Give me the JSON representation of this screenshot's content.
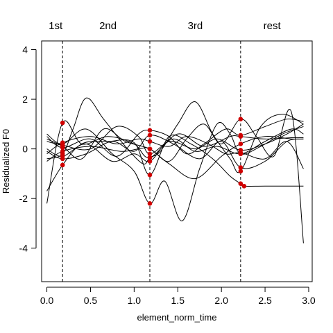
{
  "chart_data": {
    "type": "line",
    "xlabel": "element_norm_time",
    "ylabel": "Residualized F0",
    "xlim": [
      -0.06,
      3.04
    ],
    "ylim": [
      -5.35,
      4.35
    ],
    "xticks": [
      0.0,
      0.5,
      1.0,
      1.5,
      2.0,
      2.5,
      3.0
    ],
    "x_tick_labels": [
      "0.0",
      "0.5",
      "1.0",
      "1.5",
      "2.0",
      "2.5",
      "3.0"
    ],
    "yticks": [
      -4,
      -2,
      0,
      2,
      4
    ],
    "y_tick_labels": [
      "-4",
      "-2",
      "0",
      "2",
      "4"
    ],
    "boundaries": [
      0.18,
      1.18,
      2.22
    ],
    "sections": [
      {
        "label": "1st",
        "x": 0.1
      },
      {
        "label": "2nd",
        "x": 0.7
      },
      {
        "label": "3rd",
        "x": 1.7
      },
      {
        "label": "rest",
        "x": 2.58
      }
    ],
    "line_color": "#000000",
    "point_color": "#d00000",
    "series": [
      {
        "x": [
          0,
          0.18,
          0.4,
          0.7,
          1.0,
          1.18,
          1.5,
          1.8,
          2.1,
          2.22,
          2.5,
          2.8,
          2.94
        ],
        "y": [
          -2.2,
          1.05,
          0.2,
          0.5,
          0.2,
          -0.35,
          0.6,
          0.1,
          0.5,
          0.5,
          0.4,
          0.45,
          0.45
        ]
      },
      {
        "x": [
          0,
          0.18,
          0.3,
          0.45,
          0.65,
          0.9,
          1.1,
          1.18,
          1.3,
          1.5,
          1.7,
          1.9,
          2.1,
          2.22,
          2.45,
          2.7,
          2.94
        ],
        "y": [
          -0.4,
          -0.2,
          0.8,
          2.05,
          1.2,
          0.1,
          -0.6,
          -0.35,
          -0.1,
          1.0,
          1.9,
          0.6,
          -0.4,
          -0.9,
          0.9,
          1.4,
          1.0
        ]
      },
      {
        "x": [
          0,
          0.18,
          0.4,
          0.7,
          1.0,
          1.18,
          1.4,
          1.65,
          1.9,
          2.1,
          2.22,
          2.26,
          2.5,
          2.94
        ],
        "y": [
          -1.7,
          -0.65,
          0.2,
          0.3,
          0.25,
          -1.05,
          0.5,
          0.2,
          -0.4,
          -1.1,
          -1.4,
          -1.5,
          -1.5,
          -1.5
        ]
      },
      {
        "x": [
          0,
          0.18,
          0.45,
          0.75,
          1.0,
          1.18,
          1.35,
          1.55,
          1.75,
          1.95,
          2.1,
          2.22,
          2.45,
          2.7,
          2.94
        ],
        "y": [
          0.6,
          0.2,
          0.8,
          -0.2,
          -0.9,
          -2.2,
          -1.3,
          -2.9,
          -0.8,
          1.0,
          0.6,
          -0.2,
          0.1,
          0.6,
          0.9
        ]
      },
      {
        "x": [
          0,
          0.18,
          0.4,
          0.65,
          0.9,
          1.18,
          1.4,
          1.6,
          1.8,
          2.0,
          2.22,
          2.4,
          2.6,
          2.8,
          2.94
        ],
        "y": [
          0.4,
          0.1,
          -0.4,
          0.8,
          0.3,
          0.0,
          -0.5,
          0.4,
          1.0,
          0.2,
          1.2,
          0.5,
          -0.3,
          1.5,
          -3.8
        ]
      },
      {
        "x": [
          0,
          0.18,
          0.5,
          0.8,
          1.05,
          1.18,
          1.4,
          1.6,
          1.8,
          2.05,
          2.22,
          2.5,
          2.75,
          2.94
        ],
        "y": [
          0.5,
          0.05,
          0.4,
          -0.3,
          0.6,
          0.75,
          0.5,
          -0.2,
          0.2,
          0.8,
          0.55,
          0.9,
          1.2,
          1.1
        ]
      },
      {
        "x": [
          0,
          0.18,
          0.45,
          0.75,
          1.0,
          1.18,
          1.4,
          1.7,
          1.95,
          2.22,
          2.5,
          2.75,
          2.94
        ],
        "y": [
          0.0,
          -0.3,
          0.2,
          -0.5,
          -0.2,
          -0.5,
          0.3,
          0.0,
          0.4,
          -0.05,
          0.2,
          0.6,
          1.0
        ]
      },
      {
        "x": [
          0,
          0.18,
          0.5,
          0.8,
          1.05,
          1.18,
          1.4,
          1.6,
          1.85,
          2.05,
          2.22,
          2.5,
          2.75,
          2.94
        ],
        "y": [
          -0.2,
          0.25,
          0.5,
          0.2,
          0.4,
          0.3,
          0.1,
          0.5,
          0.2,
          -0.2,
          -0.15,
          -0.4,
          0.3,
          -0.8
        ]
      },
      {
        "x": [
          0,
          0.18,
          0.45,
          0.75,
          1.0,
          1.18,
          1.45,
          1.75,
          2.0,
          2.22,
          2.5,
          2.75,
          2.94
        ],
        "y": [
          -0.1,
          -0.4,
          -0.2,
          0.3,
          -0.1,
          0.55,
          0.2,
          -0.4,
          0.3,
          -0.75,
          -0.5,
          0.3,
          0.4
        ]
      },
      {
        "x": [
          0,
          0.18,
          0.5,
          0.85,
          1.05,
          1.18,
          1.4,
          1.7,
          2.0,
          2.22,
          2.5,
          2.8,
          2.94
        ],
        "y": [
          -0.5,
          -0.1,
          0.1,
          -0.1,
          0.0,
          0.0,
          -0.6,
          -1.2,
          -0.3,
          0.2,
          0.5,
          0.4,
          0.4
        ]
      },
      {
        "x": [
          0,
          0.18,
          0.5,
          0.8,
          1.05,
          1.18,
          1.45,
          1.7,
          1.95,
          2.22,
          2.5,
          2.8,
          2.94
        ],
        "y": [
          0.3,
          0.15,
          0.0,
          0.9,
          0.5,
          -0.2,
          0.4,
          -0.1,
          0.1,
          -0.2,
          0.3,
          0.8,
          0.6
        ]
      }
    ]
  }
}
